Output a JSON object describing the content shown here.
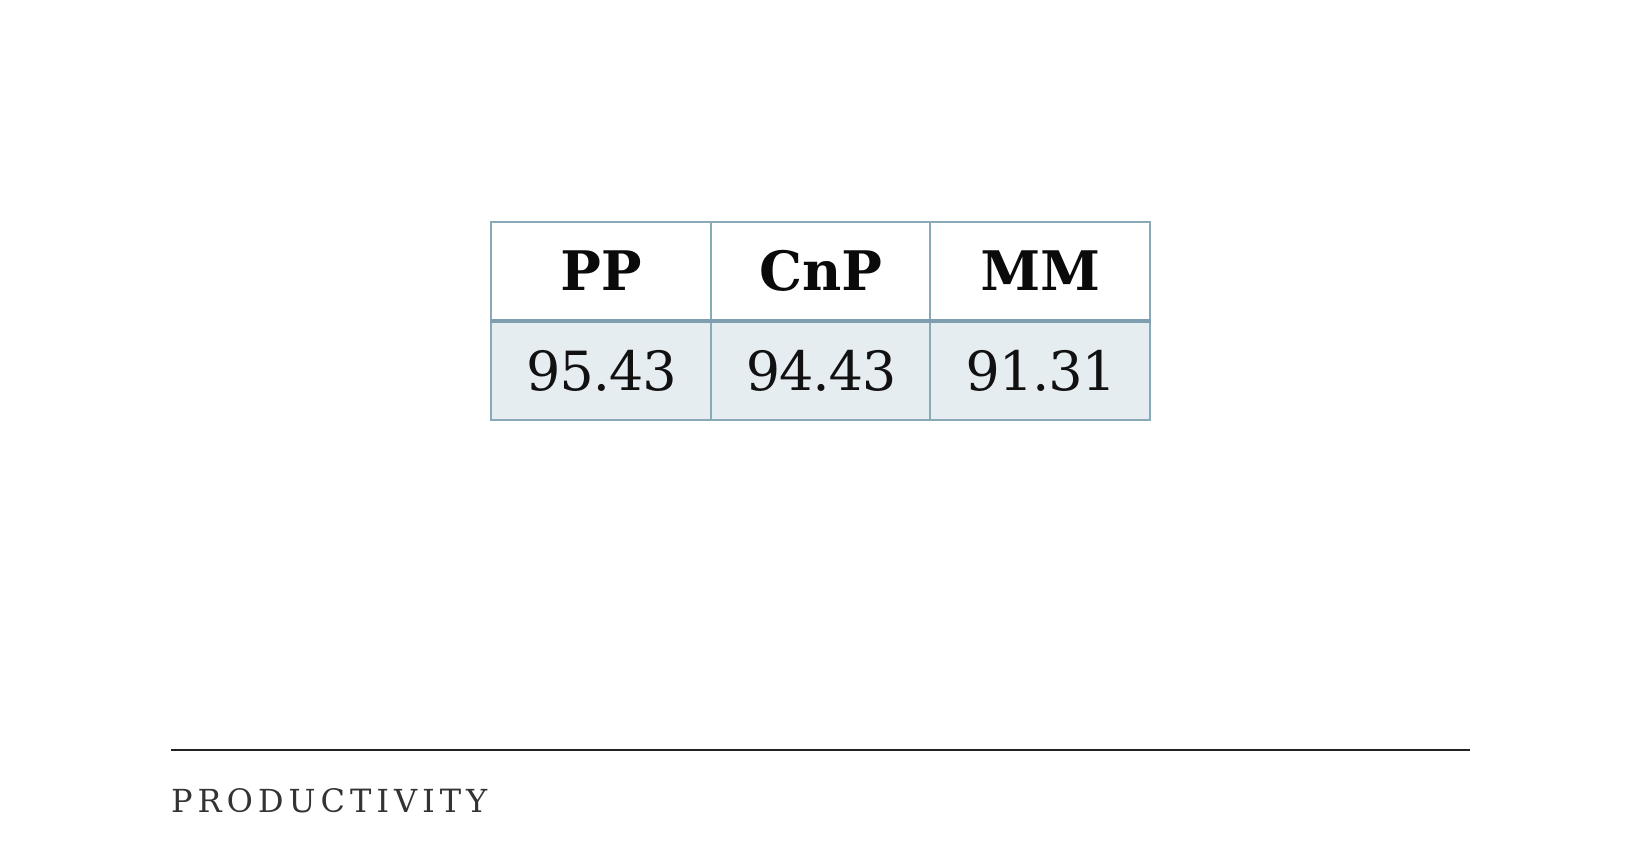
{
  "table": {
    "headers": [
      "PP",
      "CnP",
      "MM"
    ],
    "values": [
      "95.43",
      "94.43",
      "91.31"
    ]
  },
  "footer": {
    "label": "PRODUCTIVITY"
  },
  "colors": {
    "table_border": "#88a9b8",
    "value_row_background": "#e6edf1",
    "rule": "#222222"
  }
}
